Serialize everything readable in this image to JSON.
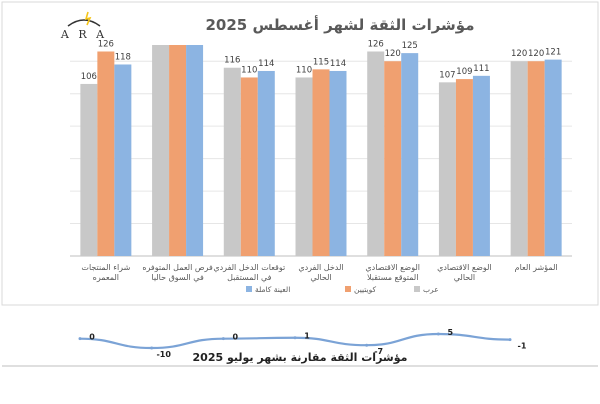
{
  "chart_data": [
    {
      "type": "bar",
      "title": "مؤشرات الثقة لشهر أغسطس 2025",
      "categories": [
        "شراء المنتجات المعمره",
        "فرص العمل المتوفره في السوق حاليا",
        "توقعات الدخل الفردي في المستقبل",
        "الدخل الفردي الحالي",
        "الوضع الاقتصادي المتوقع مستقبلا",
        "الوضع الاقتصادي الحالي",
        "المؤشر العام"
      ],
      "series": [
        {
          "name": "عرب",
          "color": "#c8c8c8",
          "values": [
            106,
            130,
            116,
            110,
            126,
            107,
            120
          ],
          "labels": [
            "106",
            "",
            "116",
            "110",
            "126",
            "107",
            "120"
          ]
        },
        {
          "name": "كويتيين",
          "color": "#f0a070",
          "values": [
            126,
            130,
            110,
            115,
            120,
            109,
            120
          ],
          "labels": [
            "126",
            "",
            "110",
            "115",
            "120",
            "109",
            "120"
          ]
        },
        {
          "name": "العينة كاملة",
          "color": "#8cb4e2",
          "values": [
            118,
            130,
            114,
            114,
            125,
            111,
            121
          ],
          "labels": [
            "118",
            "",
            "114",
            "114",
            "125",
            "111",
            "121"
          ]
        }
      ],
      "ylim": [
        0,
        130
      ],
      "grid": true,
      "legend_position": "bottom"
    },
    {
      "type": "line",
      "title": "مؤشرات الثقة مقارنة بشهر يوليو 2025",
      "values": [
        0,
        -10,
        0,
        1,
        -7,
        5,
        -1
      ],
      "labels": [
        "0",
        "-10",
        "0",
        "1",
        "-7",
        "5",
        "-1"
      ],
      "color": "#7ba3d6"
    }
  ],
  "logo": {
    "text": "A R A",
    "accent_color": "#f5c518"
  }
}
